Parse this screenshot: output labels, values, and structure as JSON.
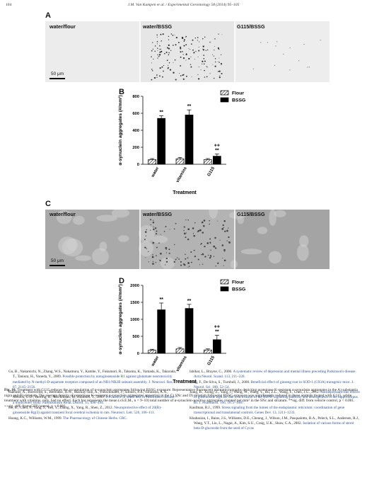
{
  "header": {
    "page_number": "104",
    "journal_line": "J.M. Van Kampen et al. / Experimental Gerontology 58 (2014) 95–105"
  },
  "panels": {
    "A": {
      "letter": "A",
      "labels": [
        "water/flour",
        "water/BSSG",
        "G115/BSSG"
      ],
      "scale": "50 μm"
    },
    "B": {
      "letter": "B"
    },
    "C": {
      "letter": "C",
      "labels": [
        "water/flour",
        "water/BSSG",
        "G115/BSSG"
      ],
      "scale": "50 μm"
    },
    "D": {
      "letter": "D"
    }
  },
  "chart_data": [
    {
      "type": "bar",
      "panel": "B",
      "categories": [
        "water",
        "vitamins",
        "G115"
      ],
      "series": [
        {
          "name": "Flour",
          "values": [
            55,
            65,
            55
          ],
          "errors": [
            12,
            15,
            12
          ],
          "pattern": "hatched"
        },
        {
          "name": "BSSG",
          "values": [
            540,
            580,
            95
          ],
          "errors": [
            30,
            60,
            25
          ],
          "pattern": "solid"
        }
      ],
      "annotations": [
        {
          "category": "water",
          "series": "BSSG",
          "text": "**"
        },
        {
          "category": "vitamins",
          "series": "BSSG",
          "text": "**"
        },
        {
          "category": "G115",
          "series": "BSSG",
          "text": "**"
        },
        {
          "category": "G115",
          "series": "BSSG",
          "text": "++"
        }
      ],
      "xlabel": "Treatment",
      "ylabel": "α-synuclein aggregates (#/mm²)",
      "ylim": [
        0,
        800
      ],
      "yticks": [
        0,
        200,
        400,
        600,
        800
      ],
      "legend_position": "top-right"
    },
    {
      "type": "bar",
      "panel": "D",
      "categories": [
        "water",
        "vitamins",
        "G115"
      ],
      "series": [
        {
          "name": "Flour",
          "values": [
            90,
            130,
            100
          ],
          "errors": [
            30,
            40,
            30
          ],
          "pattern": "hatched"
        },
        {
          "name": "BSSG",
          "values": [
            1280,
            1320,
            400
          ],
          "errors": [
            200,
            120,
            130
          ],
          "pattern": "solid"
        }
      ],
      "annotations": [
        {
          "category": "water",
          "series": "BSSG",
          "text": "**"
        },
        {
          "category": "vitamins",
          "series": "BSSG",
          "text": "**"
        },
        {
          "category": "G115",
          "series": "BSSG",
          "text": "**"
        },
        {
          "category": "G115",
          "series": "BSSG",
          "text": "++"
        }
      ],
      "xlabel": "Treatment",
      "ylabel": "α-synuclein aggregates (#/mm²)",
      "ylim": [
        0,
        2000
      ],
      "yticks": [
        0,
        500,
        1000,
        1500,
        2000
      ],
      "legend_position": "top-right"
    }
  ],
  "caption": {
    "label": "Fig. 10.",
    "text": "Treatment with G115 reduces the accumulation of α-synuclein aggregates following BSSG exposure. Representative fluorescent photomicrographs depicting proteinase K-resistant α-synuclein aggregates in the A) substantia nigra and B) striatum. The average density of proteinase K-resistant α-synuclein aggregates appearing in the C) SNc and D) striatum following BSSG exposure was significantly reduced in these animals treated with G115, while treatment with vitamins, only, had no effect. Each bar represents the mean (±S.E.M., n = 9–10) total number of α-synuclein-positive aggregates counted per mm² in the SNc and striatum. **sig. diff. from vehicle control, p < 0.001. ++sig. diff. from GFP control, p < 0.001."
  },
  "references_left": [
    {
      "plain": "Gu, B., Nakamichi, N., Zhang, W.S., Nakamura, Y., Kambe, Y., Fukumori, R., Takuma, K., Yamada, K., Takarada, T., Taniura, H., Yoneda, Y., 2009. ",
      "linked": "Possible protection by notoginsenoside R1 against glutamate neurotoxicity mediated by N-methyl-D-aspartate receptors composed of an NR1/NR2B subunit assembly. J. Neurosci. Res. 87, 2145–2156."
    },
    {
      "plain": "Haehner, A., Boesveldt, S., Berendse, H.W., Mackay-Sim, A., Fleischmann, J., Silburn, P.A., Johnston, A.N., Mellick, G.D., Herting, B., Reichmann, H., Hummel, T., 2009. ",
      "linked": "Prevalence of smell loss in Parkinson's disease—a multicenter study. Parkinsonism Relat. Disord. 15, 490–494."
    },
    {
      "plain": "He, B., Chen, P., Yang, J., Yun, Y., Zhang, X., Yang, R., Shen, Z., 2012. ",
      "linked": "Neuroprotective effect of 20(R)-ginsenoside Rg(3) against transient focal cerebral ischemia in rats. Neurosci. Lett. 526, 106–111."
    },
    {
      "plain": "Huang, K.C., Williams, W.M., 1999. ",
      "linked": "The Pharmacology of Chinese Herbs. CRC."
    }
  ],
  "references_right": [
    {
      "plain": "Ishihar, L., Brayne, C., 2006. ",
      "linked": "A systematic review of depression and mental illness preceding Parkinson's disease. Acta Neurol. Scand. 113, 211–220."
    },
    {
      "plain": "Jiang, F., De Silva, S., Turnbull, J., 2000. ",
      "linked": "Beneficial effect of ginseng root in SOD-1 (G93A) transgenic mice. J. Neurol. Sci. 180, 52–54."
    },
    {
      "plain": "Jiang, B., Xiong, Z., Yang, J., Wang, W., Wang, Y., Hu, Z.L., Wang, F., Chen, J.G., 2012. ",
      "linked": "Antidepressant-like effects of ginsenoside Rg1 are due to activation of the BDNF signalling pathway and neurogenesis in the hippocampus. Br. J. Pharmacol. 166, 1872–1887."
    },
    {
      "plain": "Kaufman, R.J., 1999. ",
      "linked": "Stress signaling from the lumen of the endoplasmic reticulum: coordination of gene transcriptional and translational controls. Genes Dev. 13, 1211–1233."
    },
    {
      "plain": "Khabazian, I., Bains, J.S., Williams, D.E., Cheung, J., Wilson, J.M., Pasqualotto, B.A., Pelech, S.L., Andersen, R.J., Wang, Y.T., Liu, L., Nagai, A., Kim, S.U., Craig, U.K., Shaw, C.A., 2002. ",
      "linked": "Isolation of various forms of sterol beta-D-glucoside from the seed of Cycas"
    }
  ]
}
